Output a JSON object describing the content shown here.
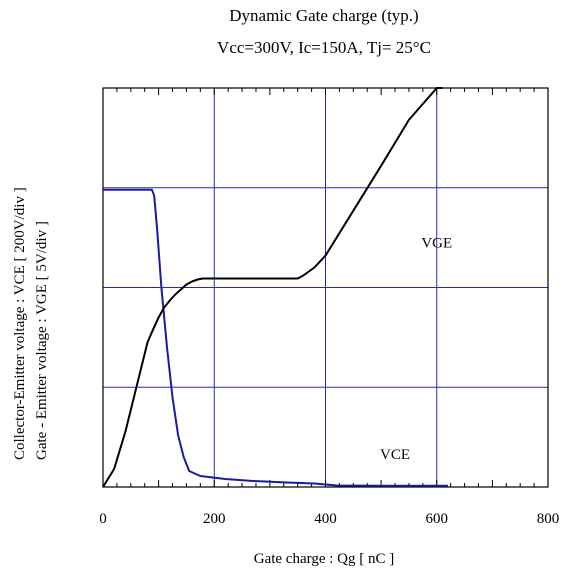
{
  "chart_data": {
    "type": "line",
    "title": "Dynamic Gate charge (typ.)",
    "subtitle": "Vcc=300V,  Ic=150A, Tj= 25°C",
    "xlabel": "Gate charge  :  Qg  [ nC ]",
    "ylabel_left_1_a": "Collector-Emitter voltage : VCE [ 200V/div ]",
    "ylabel_left_2_a": "Gate - Emitter voltage  :  VGE       [ 5V/div ]",
    "xlim": [
      0,
      800
    ],
    "ylim_divisions": [
      0,
      4
    ],
    "x_ticks": [
      0,
      200,
      400,
      600,
      800
    ],
    "x_tick_labels": [
      "0",
      "200",
      "400",
      "600",
      "800"
    ],
    "grid": true,
    "series": [
      {
        "name": "VCE",
        "color": "#1a1aa6",
        "x": [
          0,
          88,
          92,
          97,
          105,
          115,
          125,
          135,
          145,
          155,
          175,
          220,
          270,
          330,
          380,
          420,
          500,
          620
        ],
        "y": [
          2.98,
          2.98,
          2.92,
          2.6,
          2.0,
          1.4,
          0.9,
          0.52,
          0.3,
          0.16,
          0.11,
          0.08,
          0.06,
          0.045,
          0.035,
          0.015,
          0.012,
          0.012
        ]
      },
      {
        "name": "VGE",
        "color": "#000000",
        "x": [
          0,
          20,
          40,
          60,
          80,
          90,
          100,
          110,
          120,
          130,
          140,
          150,
          160,
          170,
          180,
          200,
          250,
          300,
          350,
          360,
          380,
          400,
          450,
          500,
          550,
          600,
          610
        ],
        "y": [
          0,
          0.18,
          0.55,
          1.0,
          1.45,
          1.58,
          1.7,
          1.8,
          1.87,
          1.93,
          1.98,
          2.03,
          2.06,
          2.08,
          2.09,
          2.09,
          2.09,
          2.09,
          2.09,
          2.12,
          2.2,
          2.32,
          2.77,
          3.22,
          3.68,
          4.0,
          4.0
        ]
      }
    ],
    "annotations": [
      {
        "text": "VGE",
        "x": 600,
        "y": 2.4
      },
      {
        "text": "VCE",
        "x": 525,
        "y": 0.28
      }
    ]
  }
}
